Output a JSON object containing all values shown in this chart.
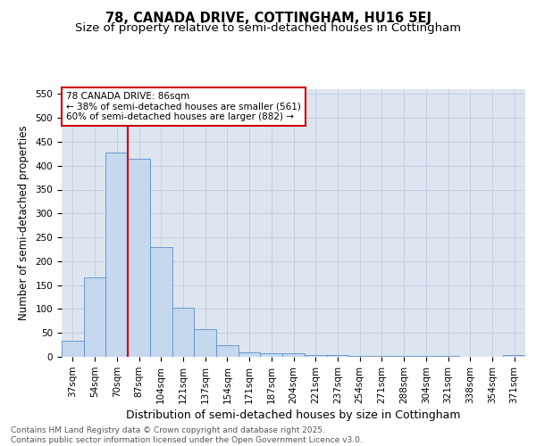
{
  "title": "78, CANADA DRIVE, COTTINGHAM, HU16 5EJ",
  "subtitle": "Size of property relative to semi-detached houses in Cottingham",
  "xlabel": "Distribution of semi-detached houses by size in Cottingham",
  "ylabel": "Number of semi-detached properties",
  "categories": [
    "37sqm",
    "54sqm",
    "70sqm",
    "87sqm",
    "104sqm",
    "121sqm",
    "137sqm",
    "154sqm",
    "171sqm",
    "187sqm",
    "204sqm",
    "221sqm",
    "237sqm",
    "254sqm",
    "271sqm",
    "288sqm",
    "304sqm",
    "321sqm",
    "338sqm",
    "354sqm",
    "371sqm"
  ],
  "values": [
    33,
    167,
    427,
    415,
    230,
    103,
    57,
    25,
    10,
    8,
    8,
    4,
    3,
    2,
    2,
    1,
    1,
    1,
    0,
    0,
    3
  ],
  "bar_color": "#c5d8ee",
  "bar_edgecolor": "#5b8fc9",
  "vline_x": 2.5,
  "vline_color": "#cc0000",
  "annotation_line1": "78 CANADA DRIVE: 86sqm",
  "annotation_line2": "← 38% of semi-detached houses are smaller (561)",
  "annotation_line3": "60% of semi-detached houses are larger (882) →",
  "annotation_box_color": "#cc0000",
  "ylim": [
    0,
    560
  ],
  "yticks": [
    0,
    50,
    100,
    150,
    200,
    250,
    300,
    350,
    400,
    450,
    500,
    550
  ],
  "grid_color": "#c5cfe0",
  "bg_color": "#dde5f0",
  "footer": "Contains HM Land Registry data © Crown copyright and database right 2025.\nContains public sector information licensed under the Open Government Licence v3.0.",
  "title_fontsize": 10.5,
  "subtitle_fontsize": 9.5,
  "xlabel_fontsize": 9,
  "ylabel_fontsize": 8.5,
  "tick_fontsize": 7.5,
  "ann_fontsize": 7.5,
  "footer_fontsize": 6.5
}
